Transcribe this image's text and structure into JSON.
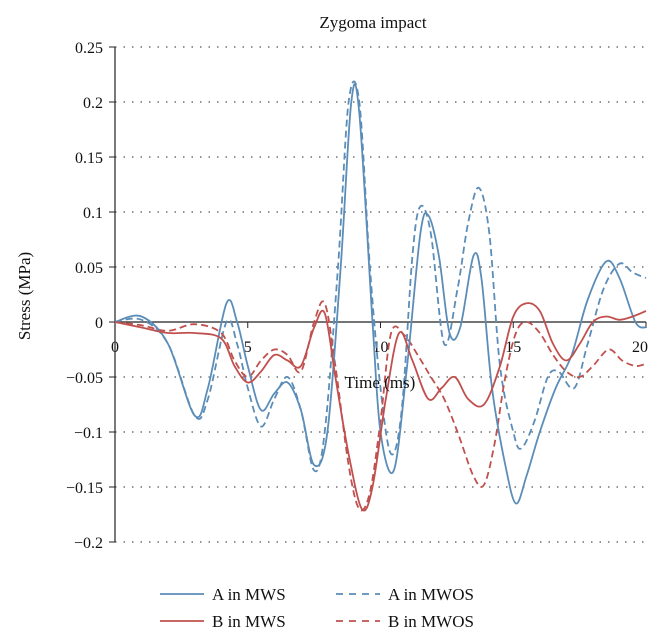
{
  "chart_data": {
    "type": "line",
    "title": "Zygoma impact",
    "xlabel": "Time (ms)",
    "ylabel": "Stress (MPa)",
    "xlim": [
      0,
      20
    ],
    "ylim": [
      -0.2,
      0.25
    ],
    "x_ticks": [
      {
        "value": 0,
        "label": "0"
      },
      {
        "value": 5,
        "label": "5"
      },
      {
        "value": 10,
        "label": "10"
      },
      {
        "value": 15,
        "label": "15"
      },
      {
        "value": 20,
        "label": "20"
      }
    ],
    "y_ticks": [
      {
        "value": 0.25,
        "label": "0.25"
      },
      {
        "value": 0.2,
        "label": "0.2"
      },
      {
        "value": 0.15,
        "label": "0.15"
      },
      {
        "value": 0.1,
        "label": "0.1"
      },
      {
        "value": 0.05,
        "label": "0.05"
      },
      {
        "value": 0,
        "label": "0"
      },
      {
        "value": -0.05,
        "label": "−0.05"
      },
      {
        "value": -0.1,
        "label": "−0.1"
      },
      {
        "value": -0.15,
        "label": "−0.15"
      },
      {
        "value": -0.2,
        "label": "−0.2"
      }
    ],
    "grid": "horizontal-dotted",
    "legend_position": "bottom",
    "series": [
      {
        "name": "A in MWS",
        "color": "#5b8db8",
        "dash": "solid",
        "points": [
          [
            0,
            0
          ],
          [
            1,
            0.005
          ],
          [
            2,
            -0.02
          ],
          [
            3,
            -0.085
          ],
          [
            3.5,
            -0.06
          ],
          [
            4.2,
            0.017
          ],
          [
            4.6,
            0
          ],
          [
            5,
            -0.04
          ],
          [
            5.5,
            -0.08
          ],
          [
            6,
            -0.065
          ],
          [
            6.5,
            -0.055
          ],
          [
            7,
            -0.08
          ],
          [
            7.5,
            -0.13
          ],
          [
            8,
            -0.1
          ],
          [
            8.5,
            0.05
          ],
          [
            8.9,
            0.2
          ],
          [
            9.2,
            0.19
          ],
          [
            9.7,
            0
          ],
          [
            10,
            -0.1
          ],
          [
            10.5,
            -0.135
          ],
          [
            11,
            -0.04
          ],
          [
            11.5,
            0.08
          ],
          [
            11.8,
            0.097
          ],
          [
            12.2,
            0.06
          ],
          [
            12.6,
            -0.01
          ],
          [
            13,
            -0.005
          ],
          [
            13.5,
            0.06
          ],
          [
            13.8,
            0.04
          ],
          [
            14.2,
            -0.06
          ],
          [
            14.7,
            -0.13
          ],
          [
            15.1,
            -0.165
          ],
          [
            15.5,
            -0.14
          ],
          [
            16,
            -0.1
          ],
          [
            16.6,
            -0.06
          ],
          [
            17.2,
            -0.03
          ],
          [
            17.8,
            0.02
          ],
          [
            18.5,
            0.055
          ],
          [
            19,
            0.04
          ],
          [
            19.6,
            0
          ],
          [
            20,
            -0.005
          ]
        ]
      },
      {
        "name": "B in MWS",
        "color": "#c0504d",
        "dash": "solid",
        "points": [
          [
            0,
            0
          ],
          [
            1,
            -0.005
          ],
          [
            2,
            -0.01
          ],
          [
            3,
            -0.01
          ],
          [
            4,
            -0.015
          ],
          [
            4.5,
            -0.04
          ],
          [
            5,
            -0.055
          ],
          [
            5.5,
            -0.045
          ],
          [
            6,
            -0.03
          ],
          [
            6.5,
            -0.035
          ],
          [
            7,
            -0.04
          ],
          [
            7.5,
            -0.005
          ],
          [
            7.9,
            0.008
          ],
          [
            8.3,
            -0.05
          ],
          [
            8.8,
            -0.12
          ],
          [
            9.3,
            -0.17
          ],
          [
            9.7,
            -0.15
          ],
          [
            10.2,
            -0.07
          ],
          [
            10.7,
            -0.01
          ],
          [
            11.2,
            -0.035
          ],
          [
            11.8,
            -0.07
          ],
          [
            12.3,
            -0.06
          ],
          [
            12.8,
            -0.05
          ],
          [
            13.3,
            -0.07
          ],
          [
            13.9,
            -0.075
          ],
          [
            14.5,
            -0.04
          ],
          [
            15,
            0.005
          ],
          [
            15.5,
            0.017
          ],
          [
            16,
            0.01
          ],
          [
            16.5,
            -0.02
          ],
          [
            17,
            -0.035
          ],
          [
            17.5,
            -0.02
          ],
          [
            18,
            0
          ],
          [
            18.5,
            0.005
          ],
          [
            19,
            0.002
          ],
          [
            19.5,
            0.005
          ],
          [
            20,
            0.01
          ]
        ]
      },
      {
        "name": "A in MWOS",
        "color": "#5b8db8",
        "dash": "dashed",
        "points": [
          [
            0,
            0
          ],
          [
            1,
            0.002
          ],
          [
            2,
            -0.02
          ],
          [
            3,
            -0.085
          ],
          [
            3.5,
            -0.07
          ],
          [
            4.2,
            0
          ],
          [
            4.6,
            -0.02
          ],
          [
            5,
            -0.06
          ],
          [
            5.5,
            -0.095
          ],
          [
            6,
            -0.07
          ],
          [
            6.5,
            -0.05
          ],
          [
            7,
            -0.08
          ],
          [
            7.5,
            -0.135
          ],
          [
            7.9,
            -0.1
          ],
          [
            8.4,
            0.05
          ],
          [
            8.8,
            0.2
          ],
          [
            9.2,
            0.2
          ],
          [
            9.6,
            0.05
          ],
          [
            10,
            -0.06
          ],
          [
            10.4,
            -0.12
          ],
          [
            10.8,
            -0.08
          ],
          [
            11.2,
            0.06
          ],
          [
            11.5,
            0.105
          ],
          [
            11.9,
            0.08
          ],
          [
            12.4,
            -0.02
          ],
          [
            12.9,
            0.03
          ],
          [
            13.3,
            0.09
          ],
          [
            13.7,
            0.122
          ],
          [
            14.1,
            0.08
          ],
          [
            14.5,
            -0.04
          ],
          [
            15,
            -0.1
          ],
          [
            15.3,
            -0.115
          ],
          [
            15.8,
            -0.09
          ],
          [
            16.3,
            -0.05
          ],
          [
            16.7,
            -0.045
          ],
          [
            17.3,
            -0.06
          ],
          [
            17.8,
            -0.02
          ],
          [
            18.4,
            0.03
          ],
          [
            19,
            0.053
          ],
          [
            19.5,
            0.045
          ],
          [
            20,
            0.04
          ]
        ]
      },
      {
        "name": "B in MWOS",
        "color": "#c0504d",
        "dash": "dashed",
        "points": [
          [
            0,
            0
          ],
          [
            1,
            -0.003
          ],
          [
            2,
            -0.008
          ],
          [
            3,
            -0.002
          ],
          [
            4,
            -0.01
          ],
          [
            4.5,
            -0.035
          ],
          [
            5,
            -0.05
          ],
          [
            5.5,
            -0.035
          ],
          [
            6,
            -0.025
          ],
          [
            6.5,
            -0.03
          ],
          [
            7,
            -0.045
          ],
          [
            7.5,
            0
          ],
          [
            7.9,
            0.017
          ],
          [
            8.3,
            -0.04
          ],
          [
            8.8,
            -0.13
          ],
          [
            9.2,
            -0.17
          ],
          [
            9.6,
            -0.155
          ],
          [
            10,
            -0.09
          ],
          [
            10.4,
            -0.01
          ],
          [
            10.9,
            -0.012
          ],
          [
            11.4,
            -0.03
          ],
          [
            11.9,
            -0.05
          ],
          [
            12.4,
            -0.07
          ],
          [
            12.9,
            -0.1
          ],
          [
            13.5,
            -0.14
          ],
          [
            13.9,
            -0.148
          ],
          [
            14.3,
            -0.11
          ],
          [
            14.7,
            -0.05
          ],
          [
            15.1,
            -0.01
          ],
          [
            15.5,
            0
          ],
          [
            16,
            -0.01
          ],
          [
            16.5,
            -0.03
          ],
          [
            17,
            -0.045
          ],
          [
            17.5,
            -0.05
          ],
          [
            18,
            -0.04
          ],
          [
            18.6,
            -0.025
          ],
          [
            19.1,
            -0.035
          ],
          [
            19.6,
            -0.04
          ],
          [
            20,
            -0.038
          ]
        ]
      }
    ]
  }
}
